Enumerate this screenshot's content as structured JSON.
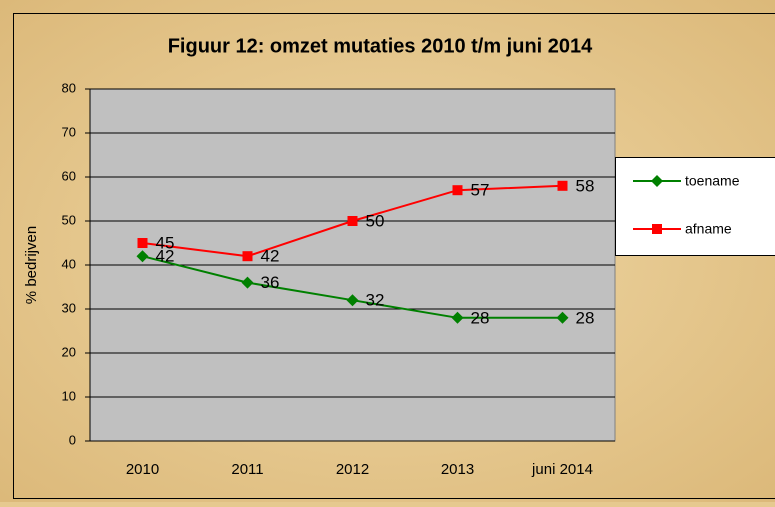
{
  "chart_data": {
    "type": "line",
    "title": "Figuur 12: omzet mutaties 2010 t/m juni 2014",
    "ylabel": "% bedrijven",
    "categories": [
      "2010",
      "2011",
      "2012",
      "2013",
      "juni 2014"
    ],
    "series": [
      {
        "name": "toename",
        "color": "#008000",
        "marker": "diamond",
        "values": [
          42,
          36,
          32,
          28,
          28
        ]
      },
      {
        "name": "afname",
        "color": "#ff0000",
        "marker": "square",
        "values": [
          45,
          42,
          50,
          57,
          58
        ]
      }
    ],
    "ylim": [
      0,
      80
    ],
    "yticks": [
      0,
      10,
      20,
      30,
      40,
      50,
      60,
      70,
      80
    ],
    "grid": true,
    "legend": "right"
  }
}
